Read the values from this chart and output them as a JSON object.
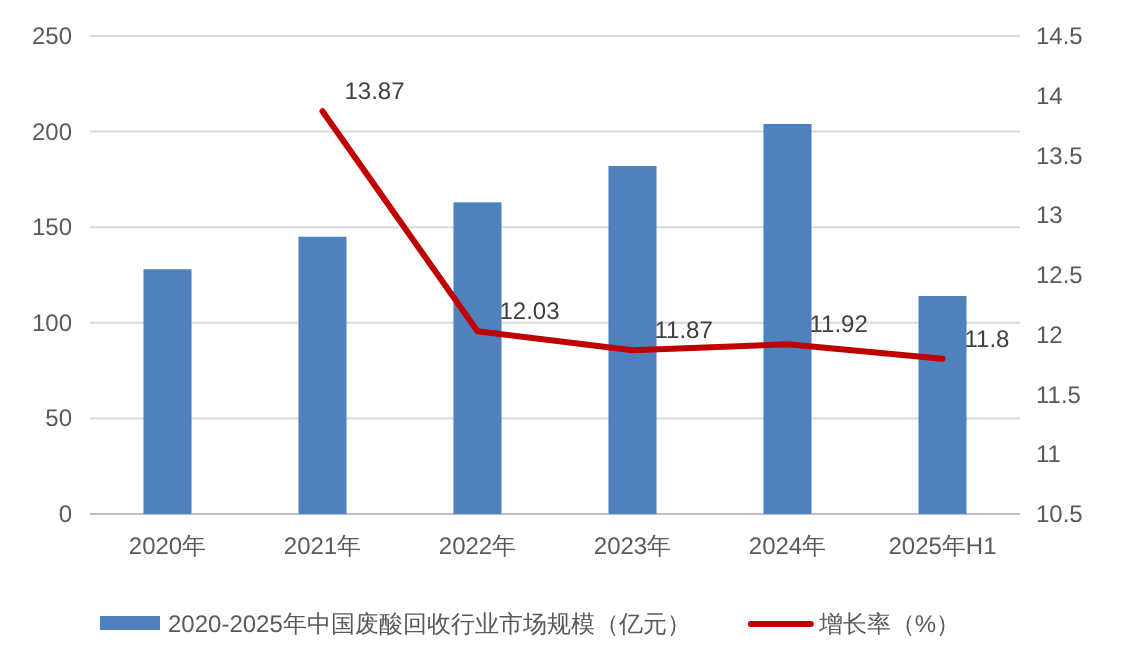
{
  "chart_data": {
    "type": "bar",
    "categories": [
      "2020年",
      "2021年",
      "2022年",
      "2023年",
      "2024年",
      "2025年H1"
    ],
    "series": [
      {
        "name": "2020-2025年中国废酸回收行业市场规模（亿元）",
        "color": "#4f81bd",
        "values": [
          128,
          145,
          163,
          182,
          204,
          114
        ]
      },
      {
        "name": "增长率（%）",
        "color": "#c00000",
        "type": "line",
        "axis": "y2",
        "values": [
          null,
          13.87,
          12.03,
          11.87,
          11.92,
          11.8
        ],
        "value_labels": [
          null,
          "13.87",
          "12.03",
          "11.87",
          "11.92",
          "11.8"
        ]
      }
    ],
    "ylim": [
      0,
      250
    ],
    "yticks": [
      0,
      50,
      100,
      150,
      200,
      250
    ],
    "y2lim": [
      10.5,
      14.5
    ],
    "y2ticks": [
      10.5,
      11,
      11.5,
      12,
      12.5,
      13,
      13.5,
      14,
      14.5
    ],
    "grid": "y",
    "legend": "bottom"
  }
}
